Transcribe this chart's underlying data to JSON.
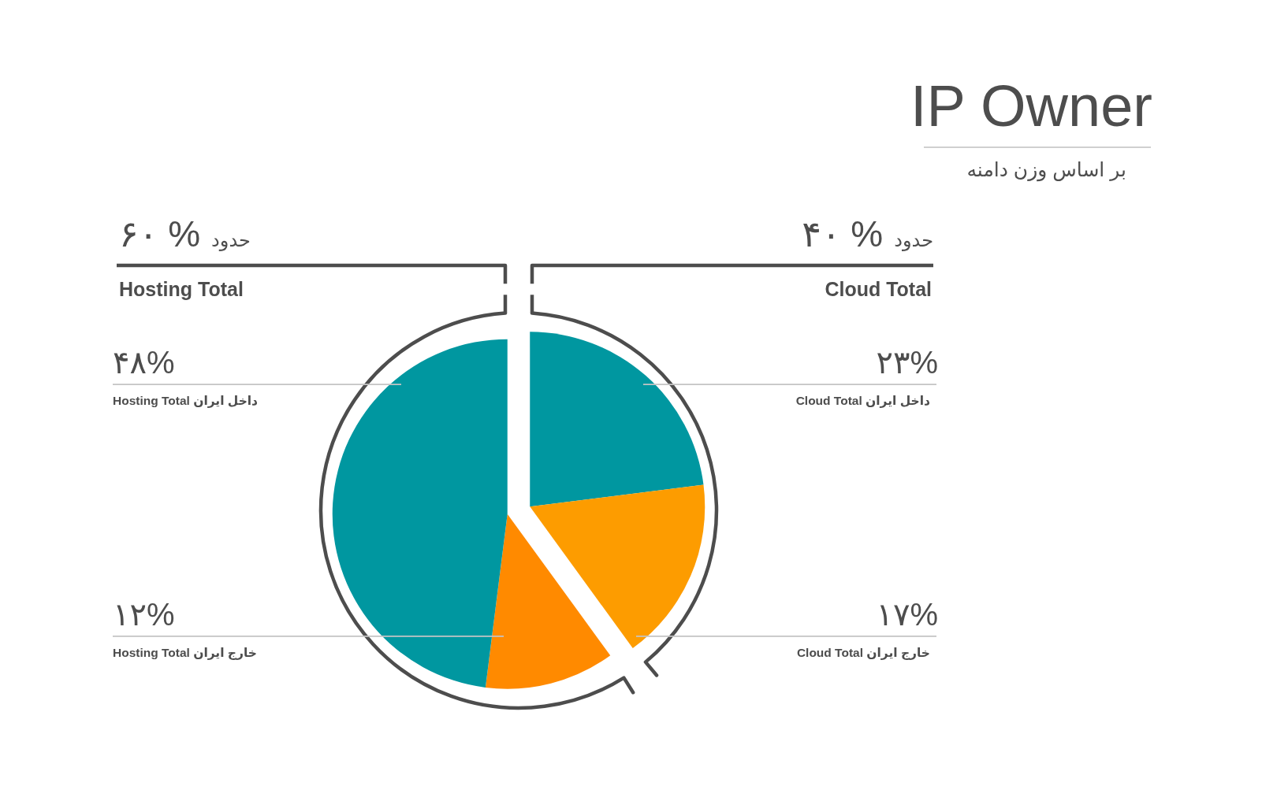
{
  "chart_data": {
    "type": "pie",
    "title": "IP Owner",
    "subtitle": "بر اساس وزن دامنه",
    "categories": [
      "داخل ایران Cloud Total",
      "خارج ایران Cloud Total",
      "خارج ایران Hosting Total",
      "داخل ایران Hosting Total"
    ],
    "values": [
      23,
      17,
      12,
      48
    ],
    "colors": [
      "#0097a0",
      "#fd9c00",
      "#ff8a00",
      "#0097a0"
    ],
    "value_labels": [
      "۲۳%",
      "۱۷%",
      "۱۲%",
      "۴۸%"
    ],
    "annotations": [
      "۶۰ %",
      "حدود",
      "Hosting Total",
      "۴۰ %",
      "حدود",
      "Cloud Total"
    ]
  }
}
